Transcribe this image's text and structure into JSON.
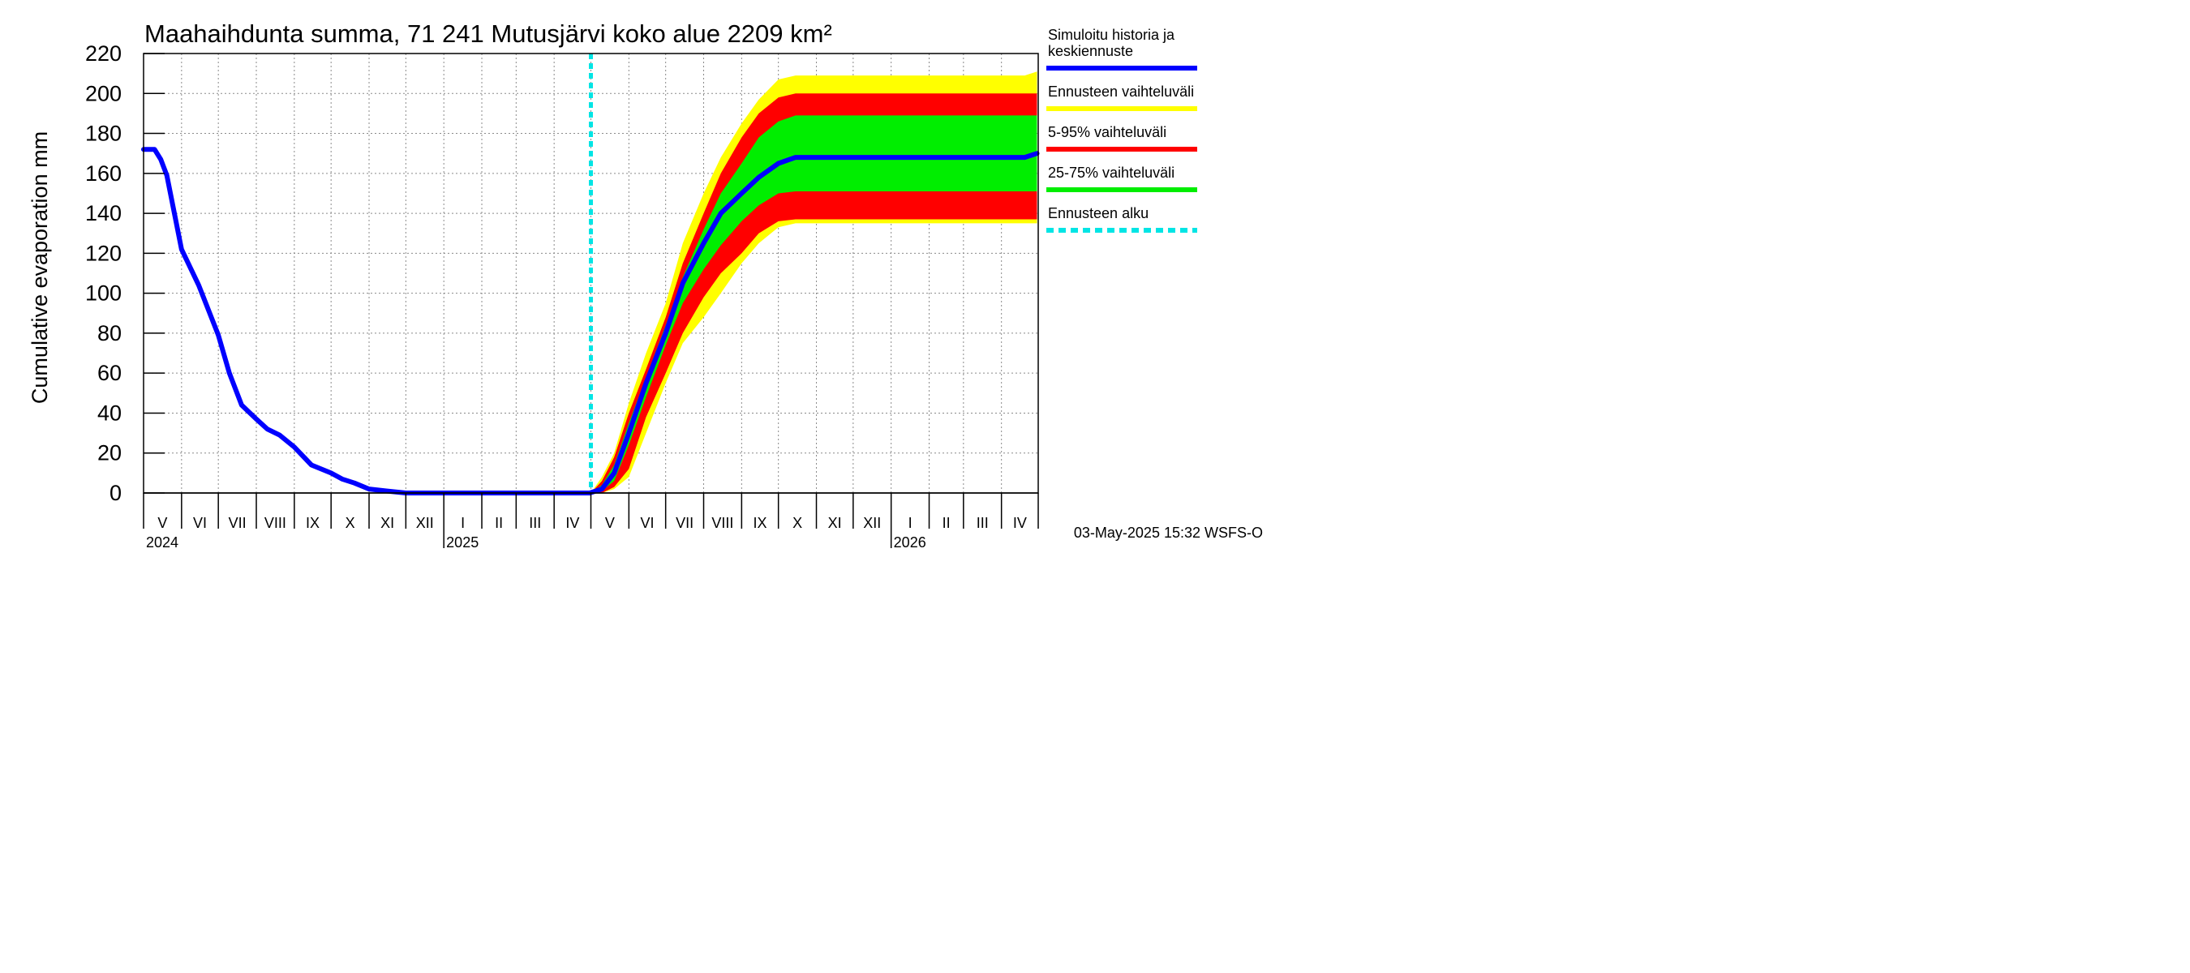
{
  "chart_data": {
    "type": "area",
    "title": "Maahaihdunta summa, 71 241 Mutusjärvi koko alue 2209 km²",
    "ylabel": "Cumulative evaporation   mm",
    "xlabel": "",
    "ylim": [
      0,
      220
    ],
    "yticks": [
      "0",
      "20",
      "40",
      "60",
      "80",
      "100",
      "120",
      "140",
      "160",
      "180",
      "200",
      "220"
    ],
    "grid": true,
    "legend_position": "right",
    "months": [
      "V",
      "VI",
      "VII",
      "VIII",
      "IX",
      "X",
      "XI",
      "XII",
      "I",
      "II",
      "III",
      "IV",
      "V",
      "VI",
      "VII",
      "VIII",
      "IX",
      "X",
      "XI",
      "XII",
      "I",
      "II",
      "III",
      "IV"
    ],
    "years": [
      "2024",
      "2025",
      "2026"
    ],
    "forecast_start": "2025-05-01",
    "series": [
      {
        "name": "Simuloitu historia ja keskiennuste",
        "color": "#0000ff",
        "points": [
          [
            "2024-05-01",
            172
          ],
          [
            "2024-05-10",
            172
          ],
          [
            "2024-05-15",
            167
          ],
          [
            "2024-05-20",
            159
          ],
          [
            "2024-06-01",
            122
          ],
          [
            "2024-06-15",
            104
          ],
          [
            "2024-07-01",
            79
          ],
          [
            "2024-07-10",
            60
          ],
          [
            "2024-07-20",
            44
          ],
          [
            "2024-08-01",
            37
          ],
          [
            "2024-08-10",
            32
          ],
          [
            "2024-08-20",
            29
          ],
          [
            "2024-09-01",
            23
          ],
          [
            "2024-09-15",
            14
          ],
          [
            "2024-10-01",
            10
          ],
          [
            "2024-10-10",
            7
          ],
          [
            "2024-10-20",
            5
          ],
          [
            "2024-11-01",
            2
          ],
          [
            "2024-11-15",
            1
          ],
          [
            "2024-12-01",
            0
          ],
          [
            "2025-04-30",
            0
          ],
          [
            "2025-05-10",
            2
          ],
          [
            "2025-05-20",
            10
          ],
          [
            "2025-06-01",
            30
          ],
          [
            "2025-06-15",
            55
          ],
          [
            "2025-07-01",
            80
          ],
          [
            "2025-07-15",
            105
          ],
          [
            "2025-08-01",
            125
          ],
          [
            "2025-08-15",
            140
          ],
          [
            "2025-09-01",
            150
          ],
          [
            "2025-09-15",
            158
          ],
          [
            "2025-10-01",
            165
          ],
          [
            "2025-10-15",
            168
          ],
          [
            "2026-04-20",
            168
          ],
          [
            "2026-04-30",
            170
          ]
        ]
      },
      {
        "name": "Ennusteen vaihteluväli",
        "color": "#ffff00",
        "upper": [
          [
            "2025-05-01",
            0
          ],
          [
            "2025-05-10",
            8
          ],
          [
            "2025-05-20",
            20
          ],
          [
            "2025-06-01",
            45
          ],
          [
            "2025-06-15",
            70
          ],
          [
            "2025-07-01",
            95
          ],
          [
            "2025-07-15",
            125
          ],
          [
            "2025-08-01",
            150
          ],
          [
            "2025-08-15",
            168
          ],
          [
            "2025-09-01",
            185
          ],
          [
            "2025-09-15",
            197
          ],
          [
            "2025-10-01",
            207
          ],
          [
            "2025-10-15",
            209
          ],
          [
            "2026-04-20",
            209
          ],
          [
            "2026-04-30",
            211
          ]
        ],
        "lower": [
          [
            "2025-05-01",
            0
          ],
          [
            "2025-05-10",
            0
          ],
          [
            "2025-05-20",
            2
          ],
          [
            "2025-06-01",
            8
          ],
          [
            "2025-06-15",
            30
          ],
          [
            "2025-07-01",
            55
          ],
          [
            "2025-07-15",
            75
          ],
          [
            "2025-08-01",
            88
          ],
          [
            "2025-08-15",
            100
          ],
          [
            "2025-09-01",
            115
          ],
          [
            "2025-09-15",
            125
          ],
          [
            "2025-10-01",
            133
          ],
          [
            "2025-10-15",
            135
          ],
          [
            "2026-04-30",
            135
          ]
        ]
      },
      {
        "name": "5-95% vaihteluväli",
        "color": "#ff0000",
        "upper": [
          [
            "2025-05-01",
            0
          ],
          [
            "2025-05-10",
            6
          ],
          [
            "2025-05-20",
            18
          ],
          [
            "2025-06-01",
            40
          ],
          [
            "2025-06-15",
            62
          ],
          [
            "2025-07-01",
            88
          ],
          [
            "2025-07-15",
            115
          ],
          [
            "2025-08-01",
            140
          ],
          [
            "2025-08-15",
            160
          ],
          [
            "2025-09-01",
            178
          ],
          [
            "2025-09-15",
            190
          ],
          [
            "2025-10-01",
            198
          ],
          [
            "2025-10-15",
            200
          ],
          [
            "2026-04-30",
            200
          ]
        ],
        "lower": [
          [
            "2025-05-01",
            0
          ],
          [
            "2025-05-10",
            0
          ],
          [
            "2025-05-20",
            3
          ],
          [
            "2025-06-01",
            12
          ],
          [
            "2025-06-15",
            38
          ],
          [
            "2025-07-01",
            60
          ],
          [
            "2025-07-15",
            80
          ],
          [
            "2025-08-01",
            98
          ],
          [
            "2025-08-15",
            110
          ],
          [
            "2025-09-01",
            120
          ],
          [
            "2025-09-15",
            130
          ],
          [
            "2025-10-01",
            136
          ],
          [
            "2025-10-15",
            137
          ],
          [
            "2026-04-30",
            137
          ]
        ]
      },
      {
        "name": "25-75% vaihteluväli",
        "color": "#00ee00",
        "upper": [
          [
            "2025-05-01",
            0
          ],
          [
            "2025-05-10",
            4
          ],
          [
            "2025-05-20",
            14
          ],
          [
            "2025-06-01",
            35
          ],
          [
            "2025-06-15",
            58
          ],
          [
            "2025-07-01",
            84
          ],
          [
            "2025-07-15",
            108
          ],
          [
            "2025-08-01",
            132
          ],
          [
            "2025-08-15",
            150
          ],
          [
            "2025-09-01",
            165
          ],
          [
            "2025-09-15",
            178
          ],
          [
            "2025-10-01",
            186
          ],
          [
            "2025-10-15",
            189
          ],
          [
            "2026-04-30",
            189
          ]
        ],
        "lower": [
          [
            "2025-05-01",
            0
          ],
          [
            "2025-05-10",
            1
          ],
          [
            "2025-05-20",
            6
          ],
          [
            "2025-06-01",
            24
          ],
          [
            "2025-06-15",
            48
          ],
          [
            "2025-07-01",
            74
          ],
          [
            "2025-07-15",
            95
          ],
          [
            "2025-08-01",
            112
          ],
          [
            "2025-08-15",
            124
          ],
          [
            "2025-09-01",
            136
          ],
          [
            "2025-09-15",
            144
          ],
          [
            "2025-10-01",
            150
          ],
          [
            "2025-10-15",
            151
          ],
          [
            "2026-04-30",
            151
          ]
        ]
      },
      {
        "name": "Ennusteen alku",
        "color": "#00e5e5"
      }
    ]
  },
  "legend": [
    {
      "label": "Simuloitu historia ja\nkeskiennuste",
      "color": "#0000ff",
      "style": "solid"
    },
    {
      "label": "Ennusteen vaihteluväli",
      "color": "#ffff00",
      "style": "solid"
    },
    {
      "label": "5-95% vaihteluväli",
      "color": "#ff0000",
      "style": "solid"
    },
    {
      "label": "25-75% vaihteluväli",
      "color": "#00ee00",
      "style": "solid"
    },
    {
      "label": "Ennusteen alku",
      "color": "#00e5e5",
      "style": "dashed"
    }
  ],
  "footer": "03-May-2025 15:32 WSFS-O"
}
